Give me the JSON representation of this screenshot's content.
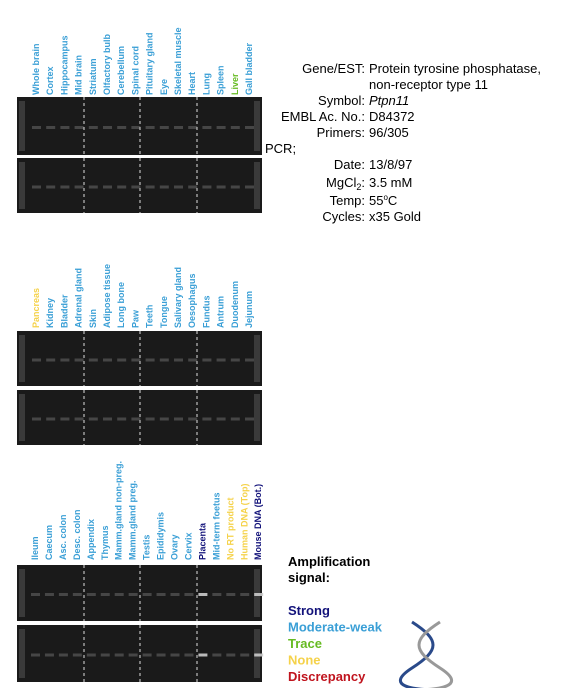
{
  "panels": [
    {
      "lanes": [
        {
          "label": "Whole brain",
          "color": "#3a9fd6"
        },
        {
          "label": "Cortex",
          "color": "#3a9fd6"
        },
        {
          "label": "Hippocampus",
          "color": "#3a9fd6"
        },
        {
          "label": "Mid brain",
          "color": "#3a9fd6"
        },
        {
          "label": "Striatum",
          "color": "#3a9fd6"
        },
        {
          "label": "Olfactory bulb",
          "color": "#3a9fd6"
        },
        {
          "label": "Cerebellum",
          "color": "#3a9fd6"
        },
        {
          "label": "Spinal cord",
          "color": "#3a9fd6"
        },
        {
          "label": "Pituitary gland",
          "color": "#3a9fd6"
        },
        {
          "label": "Eye",
          "color": "#3a9fd6"
        },
        {
          "label": "Skeletal muscle",
          "color": "#3a9fd6"
        },
        {
          "label": "Heart",
          "color": "#3a9fd6"
        },
        {
          "label": "Lung",
          "color": "#3a9fd6"
        },
        {
          "label": "Spleen",
          "color": "#3a9fd6"
        },
        {
          "label": "Liver",
          "color": "#66bb22"
        },
        {
          "label": "Gall bladder",
          "color": "#3a9fd6"
        }
      ]
    },
    {
      "lanes": [
        {
          "label": "Pancreas",
          "color": "#f5d24a"
        },
        {
          "label": "Kidney",
          "color": "#3a9fd6"
        },
        {
          "label": "Bladder",
          "color": "#3a9fd6"
        },
        {
          "label": "Adrenal gland",
          "color": "#3a9fd6"
        },
        {
          "label": "Skin",
          "color": "#3a9fd6"
        },
        {
          "label": "Adipose tissue",
          "color": "#3a9fd6"
        },
        {
          "label": "Long bone",
          "color": "#3a9fd6"
        },
        {
          "label": "Paw",
          "color": "#3a9fd6"
        },
        {
          "label": "Teeth",
          "color": "#3a9fd6"
        },
        {
          "label": "Tongue",
          "color": "#3a9fd6"
        },
        {
          "label": "Salivary gland",
          "color": "#3a9fd6"
        },
        {
          "label": "Oesophagus",
          "color": "#3a9fd6"
        },
        {
          "label": "Fundus",
          "color": "#3a9fd6"
        },
        {
          "label": "Antrum",
          "color": "#3a9fd6"
        },
        {
          "label": "Duodenum",
          "color": "#3a9fd6"
        },
        {
          "label": "Jejunum",
          "color": "#3a9fd6"
        }
      ]
    },
    {
      "lanes": [
        {
          "label": "Ileum",
          "color": "#3a9fd6"
        },
        {
          "label": "Caecum",
          "color": "#3a9fd6"
        },
        {
          "label": "Asc. colon",
          "color": "#3a9fd6"
        },
        {
          "label": "Desc. colon",
          "color": "#3a9fd6"
        },
        {
          "label": "Appendix",
          "color": "#3a9fd6"
        },
        {
          "label": "Thymus",
          "color": "#3a9fd6"
        },
        {
          "label": "Mamm.gland non-preg.",
          "color": "#3a9fd6"
        },
        {
          "label": "Mamm.gland preg.",
          "color": "#3a9fd6"
        },
        {
          "label": "Testis",
          "color": "#3a9fd6"
        },
        {
          "label": "Epididymis",
          "color": "#3a9fd6"
        },
        {
          "label": "Ovary",
          "color": "#3a9fd6"
        },
        {
          "label": "Cervix",
          "color": "#3a9fd6"
        },
        {
          "label": "Placenta",
          "color": "#12127a"
        },
        {
          "label": "Mid-term foetus",
          "color": "#3a9fd6"
        },
        {
          "label": "No RT product",
          "color": "#f5d24a"
        },
        {
          "label": "Human DNA (Top)",
          "color": "#f5d24a"
        },
        {
          "label": "Mouse DNA (Bot.)",
          "color": "#12127a"
        }
      ]
    }
  ],
  "info": {
    "gene_label": "Gene/EST:",
    "gene_line1": "Protein tyrosine phosphatase,",
    "gene_line2": "non-receptor type 11",
    "symbol_label": "Symbol:",
    "symbol": "Ptpn11",
    "embl_label": "EMBL Ac. No.:",
    "embl": "D84372",
    "primers_label": "Primers:",
    "primers": "96/305",
    "pcr": "PCR;",
    "date_label": "Date:",
    "date": "13/8/97",
    "mg_label": "MgCl",
    "mg_sub": "2",
    "mg_colon": ":",
    "mg": "3.5 mM",
    "temp_label": "Temp:",
    "temp_num": "55",
    "temp_sup": "o",
    "temp_unit": "C",
    "cycles_label": "Cycles:",
    "cycles": "x35 Gold"
  },
  "legend": {
    "title_line1": "Amplification",
    "title_line2": "signal:",
    "items": [
      {
        "label": "Strong",
        "color": "#12127a"
      },
      {
        "label": "Moderate-weak",
        "color": "#3a9fd6"
      },
      {
        "label": "Trace",
        "color": "#66bb22"
      },
      {
        "label": "None",
        "color": "#f5d24a"
      },
      {
        "label": "Discrepancy",
        "color": "#c0141e"
      }
    ]
  }
}
